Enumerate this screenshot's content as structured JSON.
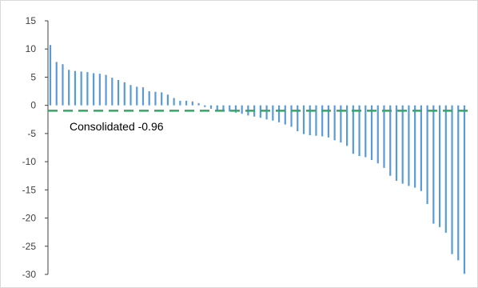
{
  "chart_data": {
    "type": "bar",
    "orientation": "vertical",
    "ylim": [
      -30,
      15
    ],
    "yticks": [
      15,
      10,
      5,
      0,
      -5,
      -10,
      -15,
      -20,
      -25,
      -30
    ],
    "ytick_labels": [
      "15",
      "10",
      "5",
      "0",
      "-5",
      "-10",
      "-15",
      "-20",
      "-25",
      "-30"
    ],
    "grid": false,
    "legend": "none",
    "values": [
      10.7,
      7.7,
      7.3,
      6.3,
      6.1,
      6.0,
      5.9,
      5.7,
      5.6,
      5.4,
      4.9,
      4.5,
      4.1,
      3.6,
      3.3,
      3.2,
      2.5,
      2.4,
      2.3,
      1.9,
      1.3,
      0.8,
      0.8,
      0.7,
      0.4,
      -0.3,
      -0.6,
      -0.9,
      -1.0,
      -1.1,
      -1.3,
      -1.5,
      -1.8,
      -2.0,
      -2.2,
      -2.5,
      -2.7,
      -3.0,
      -3.4,
      -3.8,
      -4.6,
      -5.1,
      -5.3,
      -5.4,
      -5.5,
      -5.7,
      -6.2,
      -6.6,
      -7.2,
      -8.6,
      -9.0,
      -9.2,
      -9.7,
      -10.3,
      -11.1,
      -12.5,
      -13.4,
      -13.9,
      -14.3,
      -14.6,
      -15.2,
      -17.5,
      -21.0,
      -21.6,
      -22.6,
      -26.4,
      -27.5,
      -29.9
    ],
    "reference_line": {
      "value": -0.96,
      "style": "dashed"
    },
    "colors": {
      "bar": "#5b9bd5",
      "reference_line": "#33a864",
      "axis": "#404040"
    },
    "annotation": {
      "text": "Consolidated -0.96"
    }
  }
}
